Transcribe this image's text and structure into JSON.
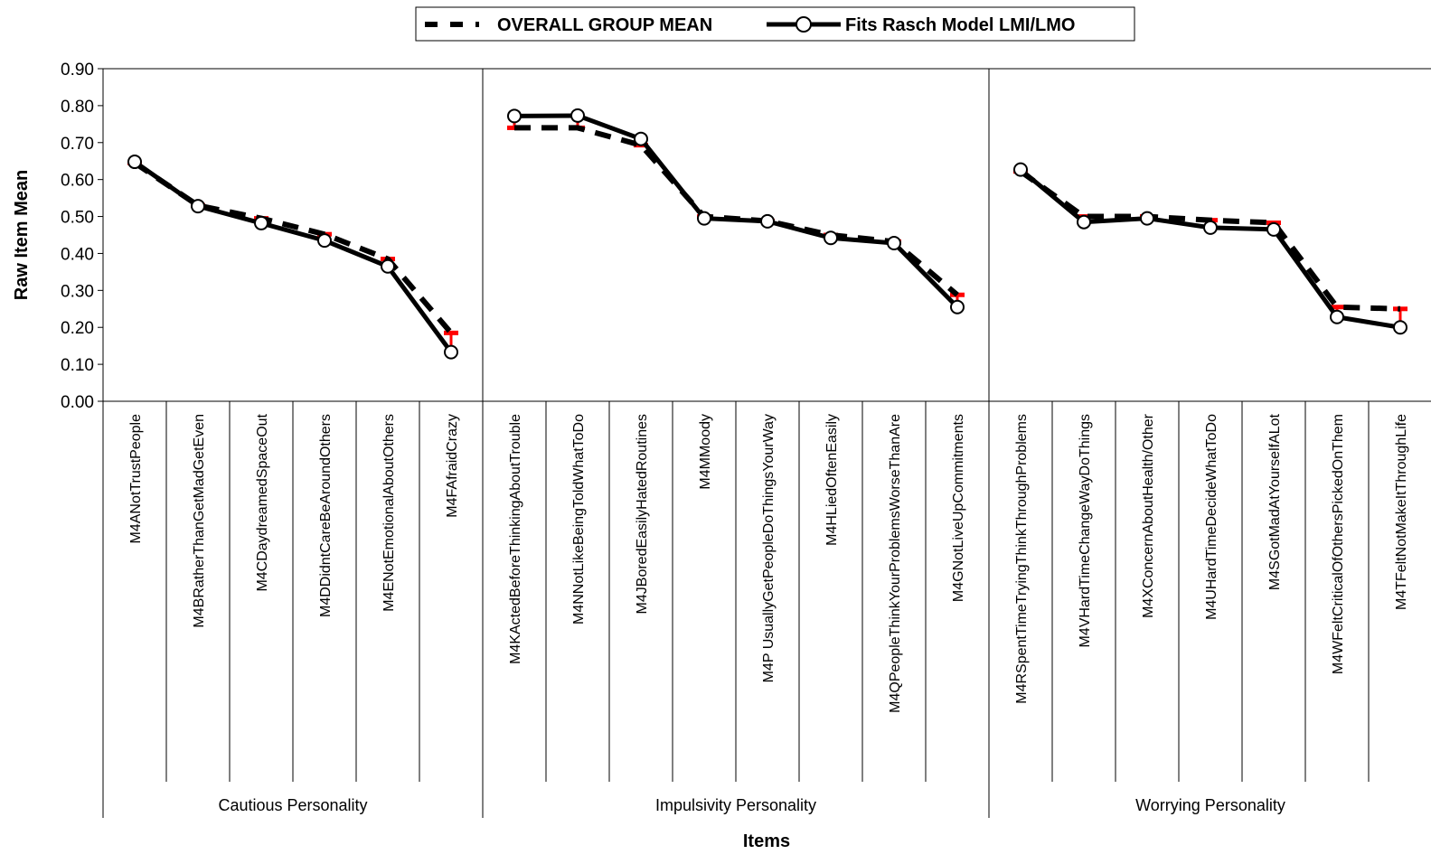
{
  "chart_data": {
    "type": "line",
    "xlabel": "Items",
    "ylabel": "Raw Item Mean",
    "ylim": [
      0,
      0.9
    ],
    "y_ticks": [
      "0.00",
      "0.10",
      "0.20",
      "0.30",
      "0.40",
      "0.50",
      "0.60",
      "0.70",
      "0.80",
      "0.90"
    ],
    "legend_position": "top-center",
    "groups": [
      {
        "name": "Cautious Personality",
        "items": [
          "M4ANotTrustPeople",
          "M4BRatherThanGetMadGetEven",
          "M4CDaydreamedSpaceOut",
          "M4DDidntCareBeAroundOthers",
          "M4ENotEmotionalAboutOthers",
          "M4FAfraidCrazy"
        ]
      },
      {
        "name": "Impulsivity Personality",
        "items": [
          "M4KActedBeforeThinkingAboutTrouble",
          "M4NNotLikeBeingToldWhatToDo",
          "M4JBoredEasilyHatedRoutines",
          "M4MMoody",
          "M4P UsuallyGetPeopleDoThingsYourWay",
          "M4HLiedOftenEasily",
          "M4QPeopleThinkYourProblemsWorseThanAre",
          "M4GNotLiveUpCommitments"
        ]
      },
      {
        "name": "Worrying Personality",
        "items": [
          "M4RSpentTimeTryingThinkThroughProblems",
          "M4VHardTimeChangeWayDoThings",
          "M4XConcernAboutHealth/Other",
          "M4UHardTimeDecideWhatToDo",
          "M4SGotMadAtYourselfALot",
          "M4WFeltCriticalOfOthersPickedOnThem",
          "M4TFeltNotMakeItThroughLife"
        ]
      }
    ],
    "series": [
      {
        "name": "OVERALL GROUP MEAN",
        "style": "dashed",
        "color": "#000000",
        "error_color": "#ff0000",
        "values": [
          [
            0.645,
            0.53,
            0.495,
            0.452,
            0.385,
            0.185
          ],
          [
            0.74,
            0.74,
            0.693,
            0.5,
            0.488,
            0.45,
            0.432,
            0.288
          ],
          [
            0.622,
            0.5,
            0.5,
            0.49,
            0.483,
            0.255,
            0.25
          ]
        ]
      },
      {
        "name": "Fits Rasch Model LMI/LMO",
        "style": "solid-circle",
        "color": "#000000",
        "values": [
          [
            0.648,
            0.528,
            0.482,
            0.435,
            0.365,
            0.133
          ],
          [
            0.772,
            0.773,
            0.71,
            0.495,
            0.487,
            0.442,
            0.428,
            0.255
          ],
          [
            0.627,
            0.485,
            0.495,
            0.47,
            0.465,
            0.228,
            0.2
          ]
        ]
      }
    ]
  }
}
